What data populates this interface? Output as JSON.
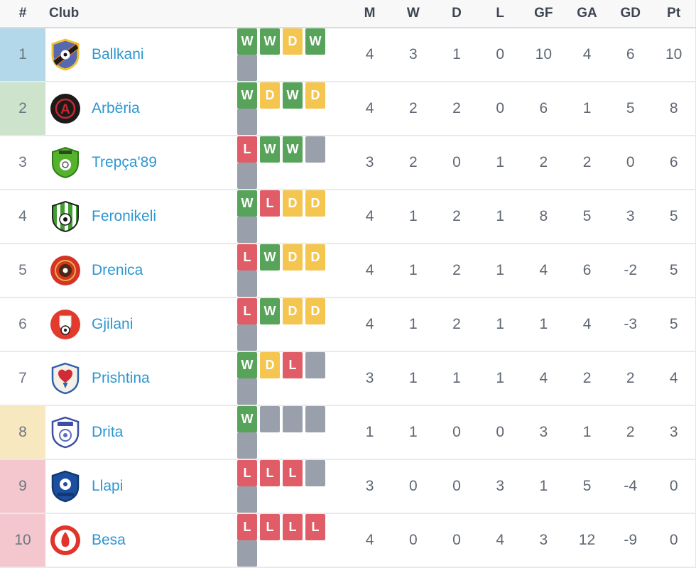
{
  "table": {
    "headers": [
      "#",
      "Club",
      "M",
      "W",
      "D",
      "L",
      "GF",
      "GA",
      "GD",
      "Pt"
    ],
    "form_colors": {
      "W": "#57a359",
      "D": "#f5c64f",
      "L": "#e05c66",
      "empty": "#9aa0ab"
    },
    "rows": [
      {
        "rank": "1",
        "club": "Ballkani",
        "rank_bg": "#b2d8e9",
        "form": [
          "W",
          "W",
          "D",
          "W",
          ""
        ],
        "stats": [
          "4",
          "3",
          "1",
          "0",
          "10",
          "4",
          "6",
          "10"
        ],
        "logo": {
          "variant": "ballkani",
          "colors": [
            "#f0c232",
            "#5568b0",
            "#1e1e1e",
            "#e87722"
          ]
        }
      },
      {
        "rank": "2",
        "club": "Arbëria",
        "rank_bg": "#cde3cc",
        "form": [
          "W",
          "D",
          "W",
          "D",
          ""
        ],
        "stats": [
          "4",
          "2",
          "2",
          "0",
          "6",
          "1",
          "5",
          "8"
        ],
        "logo": {
          "variant": "arberia",
          "colors": [
            "#1b1b1b",
            "#c8272d"
          ]
        }
      },
      {
        "rank": "3",
        "club": "Trepça'89",
        "rank_bg": "",
        "form": [
          "L",
          "W",
          "W",
          "",
          ""
        ],
        "stats": [
          "3",
          "2",
          "0",
          "1",
          "2",
          "2",
          "0",
          "6"
        ],
        "logo": {
          "variant": "trepca",
          "colors": [
            "#54b22c",
            "#2f7d18",
            "#ffffff"
          ]
        }
      },
      {
        "rank": "4",
        "club": "Feronikeli",
        "rank_bg": "",
        "form": [
          "W",
          "L",
          "D",
          "D",
          ""
        ],
        "stats": [
          "4",
          "1",
          "2",
          "1",
          "8",
          "5",
          "3",
          "5"
        ],
        "logo": {
          "variant": "feronikeli",
          "colors": [
            "#222222",
            "#ffffff",
            "#3f9e2f"
          ]
        }
      },
      {
        "rank": "5",
        "club": "Drenica",
        "rank_bg": "",
        "form": [
          "L",
          "W",
          "D",
          "D",
          ""
        ],
        "stats": [
          "4",
          "1",
          "2",
          "1",
          "4",
          "6",
          "-2",
          "5"
        ],
        "logo": {
          "variant": "drenica",
          "colors": [
            "#d43428",
            "#e8b43a",
            "#4a2a12"
          ]
        }
      },
      {
        "rank": "6",
        "club": "Gjilani",
        "rank_bg": "",
        "form": [
          "L",
          "W",
          "D",
          "D",
          ""
        ],
        "stats": [
          "4",
          "1",
          "2",
          "1",
          "1",
          "4",
          "-3",
          "5"
        ],
        "logo": {
          "variant": "gjilani",
          "colors": [
            "#e23b2e",
            "#ffffff",
            "#d9d9d9"
          ]
        }
      },
      {
        "rank": "7",
        "club": "Prishtina",
        "rank_bg": "",
        "form": [
          "W",
          "D",
          "L",
          "",
          ""
        ],
        "stats": [
          "3",
          "1",
          "1",
          "1",
          "4",
          "2",
          "2",
          "4"
        ],
        "logo": {
          "variant": "prishtina",
          "colors": [
            "#2f5fae",
            "#f4f0e6",
            "#d22b38"
          ]
        }
      },
      {
        "rank": "8",
        "club": "Drita",
        "rank_bg": "#f8e8c0",
        "form": [
          "W",
          "",
          "",
          "",
          ""
        ],
        "stats": [
          "1",
          "1",
          "0",
          "0",
          "3",
          "1",
          "2",
          "3"
        ],
        "logo": {
          "variant": "drita",
          "colors": [
            "#3b4fa3",
            "#ffffff",
            "#5a6cc0"
          ]
        }
      },
      {
        "rank": "9",
        "club": "Llapi",
        "rank_bg": "#f3c7cd",
        "form": [
          "L",
          "L",
          "L",
          "",
          ""
        ],
        "stats": [
          "3",
          "0",
          "0",
          "3",
          "1",
          "5",
          "-4",
          "0"
        ],
        "logo": {
          "variant": "llapi",
          "colors": [
            "#12386f",
            "#1c4fa0",
            "#ffffff"
          ]
        }
      },
      {
        "rank": "10",
        "club": "Besa",
        "rank_bg": "#f3c7cd",
        "form": [
          "L",
          "L",
          "L",
          "L",
          ""
        ],
        "stats": [
          "4",
          "0",
          "0",
          "4",
          "3",
          "12",
          "-9",
          "0"
        ],
        "logo": {
          "variant": "besa",
          "colors": [
            "#e1342b",
            "#ffffff"
          ]
        }
      }
    ]
  }
}
